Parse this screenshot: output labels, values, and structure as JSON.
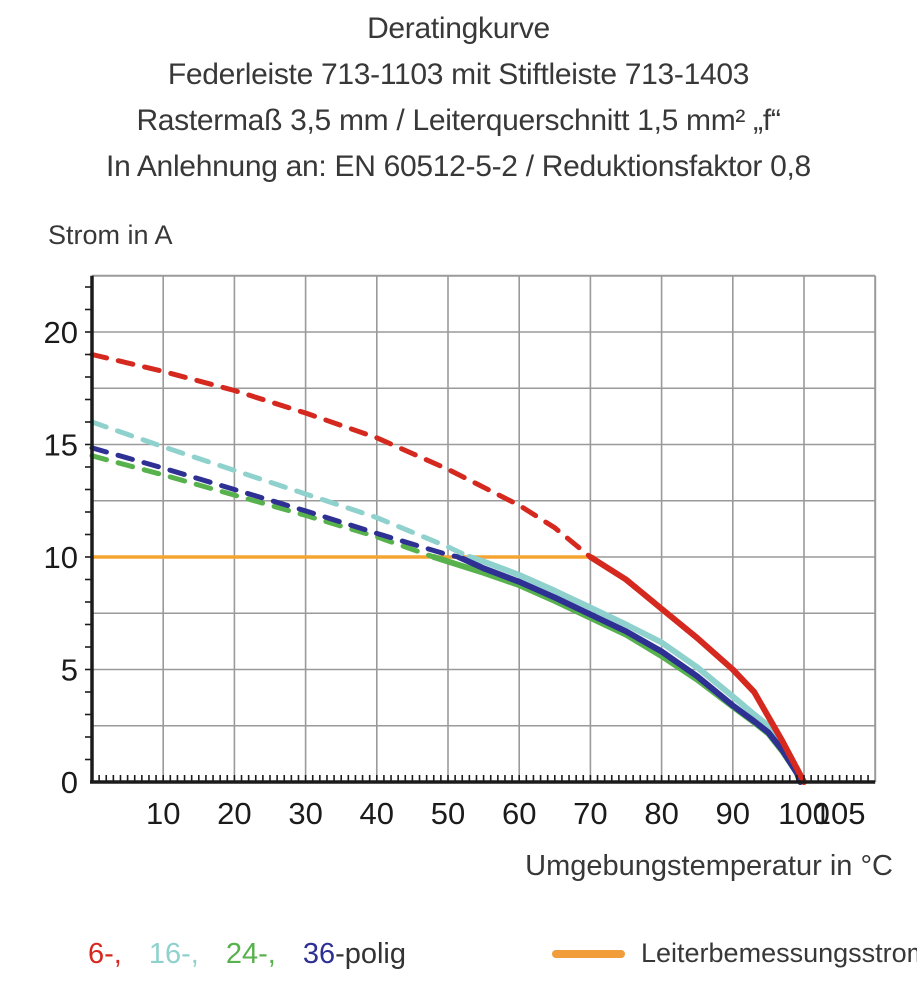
{
  "header": {
    "line1": "Deratingkurve",
    "line2": "Federleiste 713-1103 mit Stiftleiste 713-1403",
    "line3": "Rastermaß 3,5 mm / Leiterquerschnitt 1,5 mm² „f“",
    "line4": "In Anlehnung an: EN 60512-5-2 / Reduktionsfaktor 0,8"
  },
  "chart_data": {
    "type": "line",
    "ylabel": "Strom in A",
    "xlabel": "Umgebungstemperatur in °C",
    "xlim": [
      0,
      110
    ],
    "ylim": [
      0,
      22.5
    ],
    "xticks": [
      10,
      20,
      30,
      40,
      50,
      60,
      70,
      80,
      90,
      100,
      105
    ],
    "yticks": [
      0,
      5,
      10,
      15,
      20
    ],
    "grid": {
      "x_interval": 10,
      "y_interval": 2.5,
      "color": "#9a9a9a",
      "axis_color": "#1b1b1b"
    },
    "series": [
      {
        "name": "Leiterbemessungsstrom",
        "color": "#f5a432",
        "style": "solid",
        "width": 3.5,
        "points": [
          [
            0,
            10
          ],
          [
            70.5,
            10
          ]
        ]
      },
      {
        "name": "24-polig derated",
        "color": "#57b14d",
        "style": "solid",
        "points": [
          [
            48,
            10
          ],
          [
            55,
            9.3
          ],
          [
            60,
            8.75
          ],
          [
            65,
            8.05
          ],
          [
            70,
            7.3
          ],
          [
            75,
            6.55
          ],
          [
            80,
            5.6
          ],
          [
            85,
            4.55
          ],
          [
            90,
            3.35
          ],
          [
            93,
            2.65
          ],
          [
            95,
            2.15
          ],
          [
            97,
            1.35
          ],
          [
            99,
            0.4
          ],
          [
            99.5,
            0
          ]
        ]
      },
      {
        "name": "16-polig derated",
        "color": "#8fd1cd",
        "style": "solid",
        "points": [
          [
            53,
            10
          ],
          [
            55,
            9.8
          ],
          [
            60,
            9.2
          ],
          [
            65,
            8.5
          ],
          [
            70,
            7.75
          ],
          [
            75,
            7.0
          ],
          [
            80,
            6.2
          ],
          [
            85,
            5.1
          ],
          [
            90,
            3.8
          ],
          [
            93,
            3.0
          ],
          [
            95,
            2.5
          ],
          [
            97,
            1.6
          ],
          [
            99,
            0.6
          ],
          [
            100,
            0
          ]
        ]
      },
      {
        "name": "36-polig derated",
        "color": "#2e3193",
        "style": "solid",
        "points": [
          [
            51.5,
            10
          ],
          [
            55,
            9.5
          ],
          [
            60,
            8.9
          ],
          [
            65,
            8.2
          ],
          [
            70,
            7.45
          ],
          [
            75,
            6.7
          ],
          [
            80,
            5.8
          ],
          [
            85,
            4.7
          ],
          [
            90,
            3.4
          ],
          [
            93,
            2.7
          ],
          [
            95,
            2.2
          ],
          [
            97,
            1.4
          ],
          [
            99,
            0.4
          ],
          [
            99.5,
            0
          ]
        ]
      },
      {
        "name": "6-polig derated",
        "color": "#d5281e",
        "style": "solid",
        "points": [
          [
            70,
            10
          ],
          [
            75,
            9.0
          ],
          [
            80,
            7.7
          ],
          [
            85,
            6.4
          ],
          [
            90,
            5.0
          ],
          [
            93,
            4.0
          ],
          [
            95,
            2.9
          ],
          [
            97,
            1.8
          ],
          [
            99,
            0.6
          ],
          [
            100,
            0
          ]
        ]
      },
      {
        "name": "24-polig rated",
        "color": "#57b14d",
        "style": "dashed",
        "points": [
          [
            0,
            14.5
          ],
          [
            10,
            13.65
          ],
          [
            20,
            12.75
          ],
          [
            30,
            11.85
          ],
          [
            40,
            10.9
          ],
          [
            48,
            10
          ]
        ]
      },
      {
        "name": "36-polig rated",
        "color": "#2e3193",
        "style": "dashed",
        "points": [
          [
            0,
            14.85
          ],
          [
            10,
            13.95
          ],
          [
            20,
            13.0
          ],
          [
            30,
            12.05
          ],
          [
            40,
            11.05
          ],
          [
            50,
            10.1
          ],
          [
            51.5,
            10
          ]
        ]
      },
      {
        "name": "16-polig rated",
        "color": "#8fd1cd",
        "style": "dashed",
        "points": [
          [
            0,
            16
          ],
          [
            10,
            14.9
          ],
          [
            20,
            13.85
          ],
          [
            30,
            12.8
          ],
          [
            40,
            11.75
          ],
          [
            50,
            10.45
          ],
          [
            53,
            10
          ]
        ]
      },
      {
        "name": "6-polig rated",
        "color": "#d5281e",
        "style": "dashed",
        "points": [
          [
            0,
            19
          ],
          [
            10,
            18.25
          ],
          [
            20,
            17.4
          ],
          [
            30,
            16.4
          ],
          [
            40,
            15.3
          ],
          [
            50,
            13.9
          ],
          [
            60,
            12.3
          ],
          [
            65,
            11.3
          ],
          [
            70,
            10
          ]
        ]
      }
    ]
  },
  "legend": {
    "poles": [
      {
        "label": "6-,",
        "color": "#d5281e"
      },
      {
        "label": "16-,",
        "color": "#8fd1cd"
      },
      {
        "label": "24-,",
        "color": "#57b14d"
      },
      {
        "label": "36",
        "color": "#2e3193"
      },
      {
        "label": "-polig",
        "color": "#333333"
      }
    ],
    "rated_current": {
      "label": "Leiterbemessungsstrom",
      "color": "#f09d3a"
    }
  }
}
